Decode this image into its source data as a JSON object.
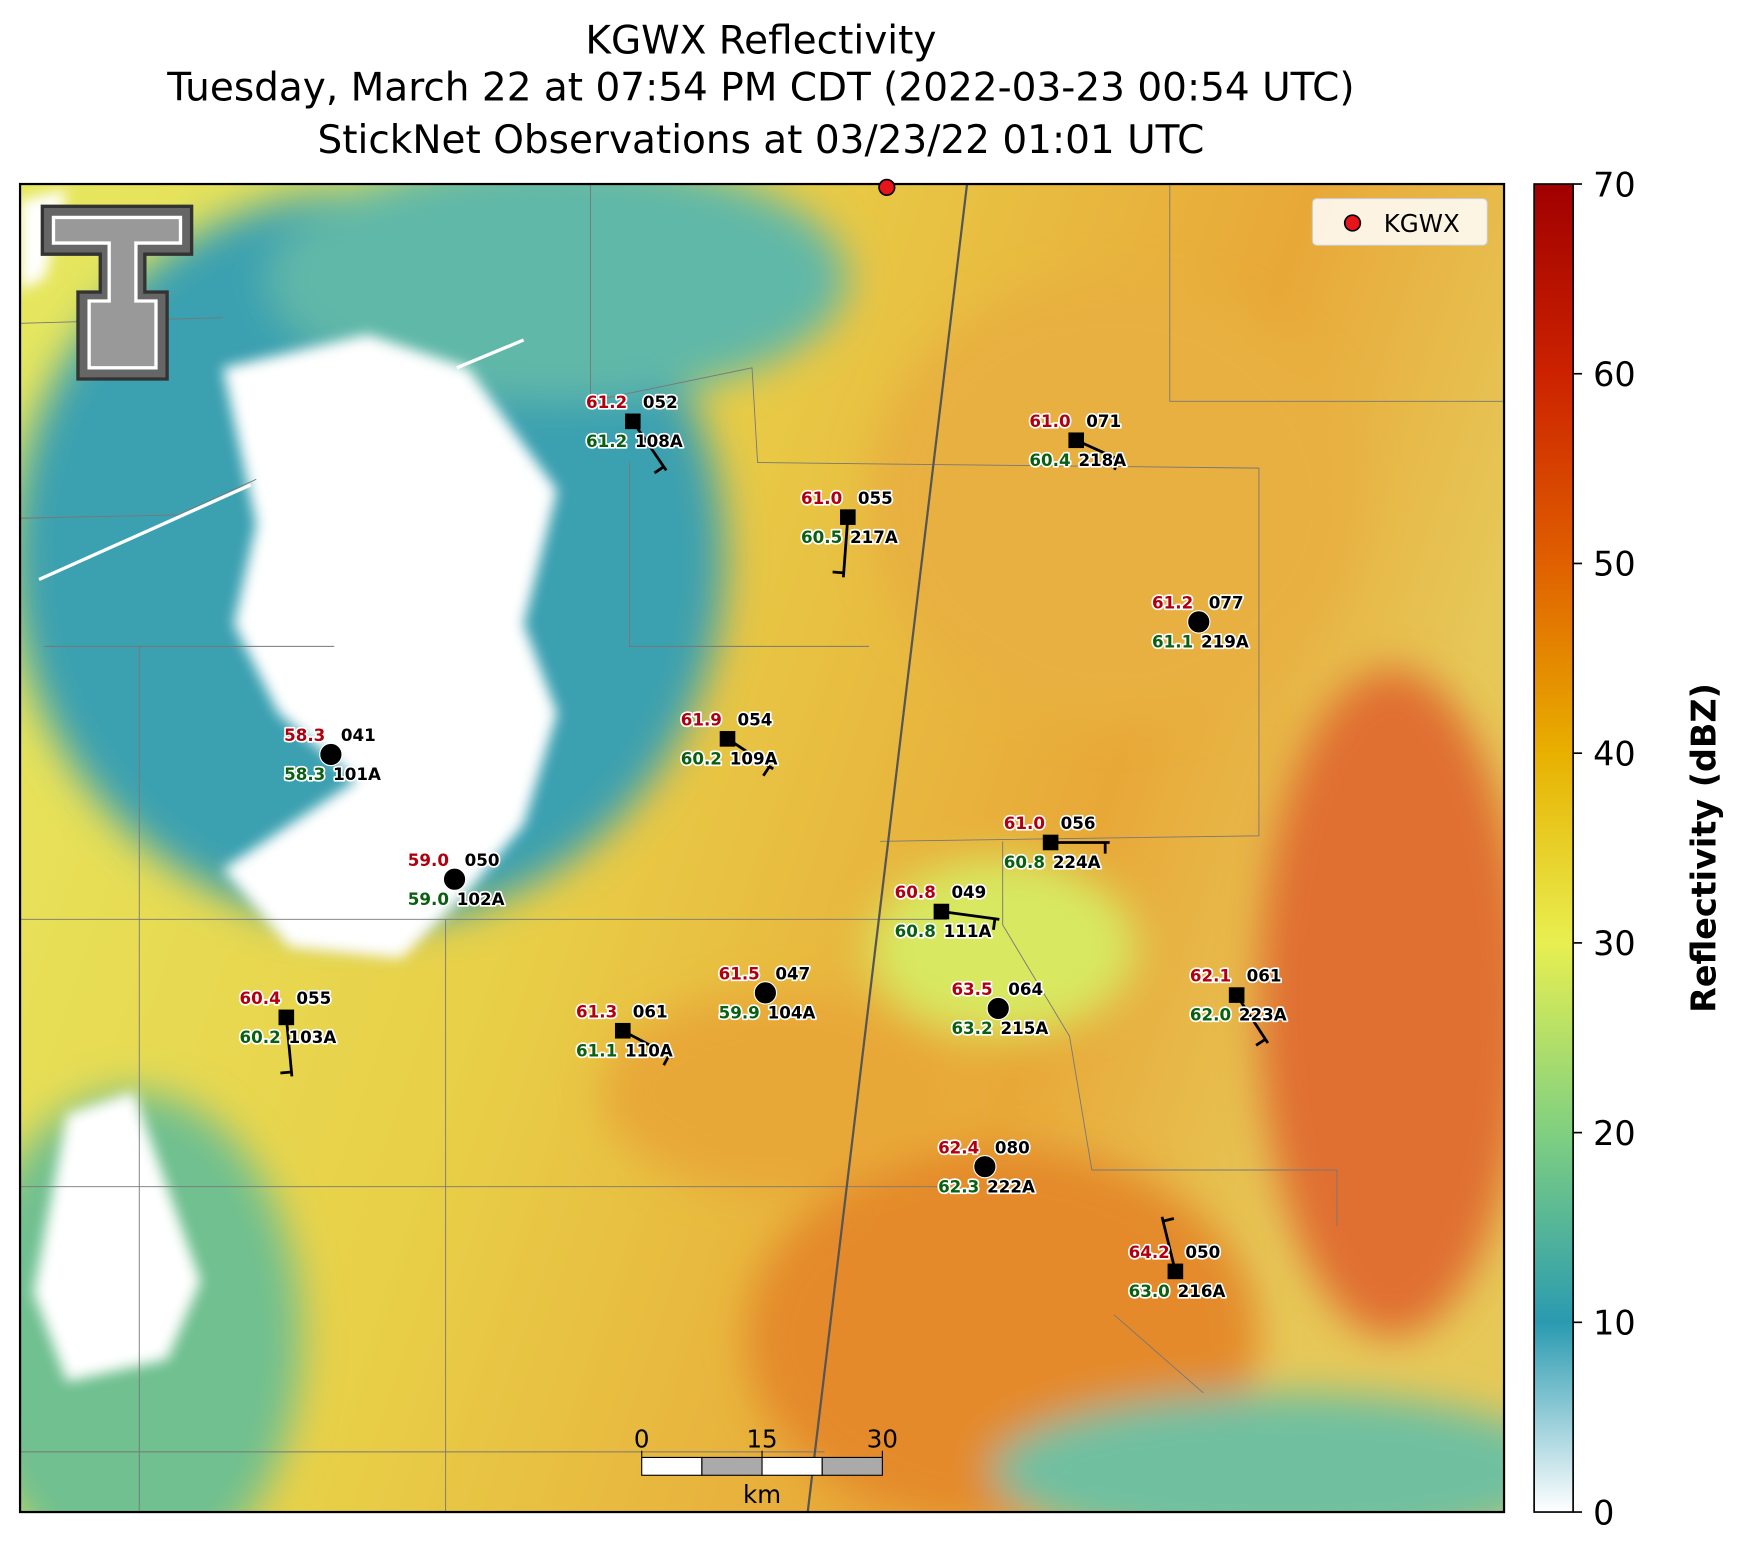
{
  "title": [
    "KGWX Reflectivity",
    "Tuesday, March 22 at 07:54 PM CDT (2022-03-23 00:54 UTC)",
    "StickNet Observations at 03/23/22 01:01 UTC"
  ],
  "legend": {
    "label": "KGWX"
  },
  "stations": [
    {
      "temperature": "61.2",
      "dewpoint": "61.2",
      "value": "052",
      "id": "108A"
    },
    {
      "temperature": "61.0",
      "dewpoint": "60.5",
      "value": "055",
      "id": "217A"
    },
    {
      "temperature": "61.0",
      "dewpoint": "60.4",
      "value": "071",
      "id": "218A"
    },
    {
      "temperature": "61.2",
      "dewpoint": "61.1",
      "value": "077",
      "id": "219A"
    },
    {
      "temperature": "58.3",
      "dewpoint": "58.3",
      "value": "041",
      "id": "101A"
    },
    {
      "temperature": "61.9",
      "dewpoint": "60.2",
      "value": "054",
      "id": "109A"
    },
    {
      "temperature": "61.0",
      "dewpoint": "60.8",
      "value": "056",
      "id": "224A"
    },
    {
      "temperature": "59.0",
      "dewpoint": "59.0",
      "value": "050",
      "id": "102A"
    },
    {
      "temperature": "60.8",
      "dewpoint": "60.8",
      "value": "049",
      "id": "111A"
    },
    {
      "temperature": "61.5",
      "dewpoint": "59.9",
      "value": "047",
      "id": "104A"
    },
    {
      "temperature": "63.5",
      "dewpoint": "63.2",
      "value": "064",
      "id": "215A"
    },
    {
      "temperature": "62.1",
      "dewpoint": "62.0",
      "value": "061",
      "id": "223A"
    },
    {
      "temperature": "60.4",
      "dewpoint": "60.2",
      "value": "055",
      "id": "103A"
    },
    {
      "temperature": "61.3",
      "dewpoint": "61.1",
      "value": "061",
      "id": "110A"
    },
    {
      "temperature": "62.4",
      "dewpoint": "62.3",
      "value": "080",
      "id": "222A"
    },
    {
      "temperature": "64.2",
      "dewpoint": "63.0",
      "value": "050",
      "id": "216A"
    }
  ],
  "colorbar": {
    "label": "Reflectivity (dBZ)",
    "ticks": [
      0,
      10,
      20,
      30,
      40,
      50,
      60,
      70
    ]
  },
  "scale_bar": {
    "ticks": [
      0,
      15,
      30
    ],
    "unit": "km"
  }
}
